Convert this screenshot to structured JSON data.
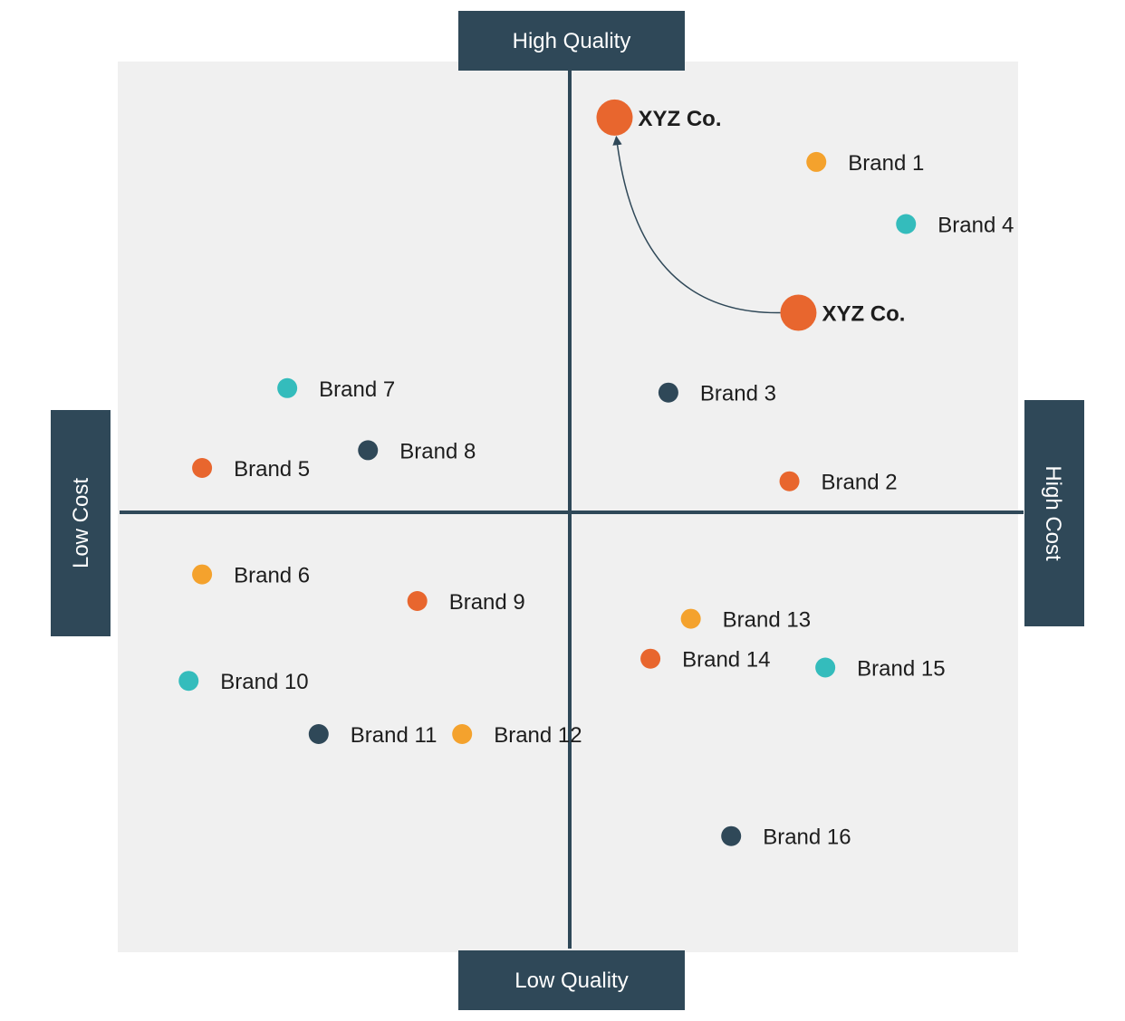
{
  "chart_data": {
    "type": "scatter",
    "title": "",
    "axes": {
      "top": "High Quality",
      "bottom": "Low Quality",
      "left": "Low Cost",
      "right": "High Cost"
    },
    "xlim": [
      -10,
      10
    ],
    "ylim": [
      -10,
      10
    ],
    "grid": false,
    "colors": {
      "background": "#f0f0f0",
      "axis": "#2f4858",
      "label_box": "#2f4858",
      "orange": "#e8662e",
      "yellow": "#f4a22d",
      "teal": "#34bcbc",
      "navy": "#2f4858",
      "arrow": "#2f4858"
    },
    "points": [
      {
        "label": "XYZ Co.",
        "x": 1.0,
        "y": 8.9,
        "color": "orange",
        "highlight": true
      },
      {
        "label": "XYZ Co.",
        "x": 5.1,
        "y": 4.5,
        "color": "orange",
        "highlight": true
      },
      {
        "label": "Brand 1",
        "x": 5.5,
        "y": 7.9,
        "color": "yellow"
      },
      {
        "label": "Brand 4",
        "x": 7.5,
        "y": 6.5,
        "color": "teal"
      },
      {
        "label": "Brand 3",
        "x": 2.2,
        "y": 2.7,
        "color": "navy"
      },
      {
        "label": "Brand 2",
        "x": 4.9,
        "y": 0.7,
        "color": "orange"
      },
      {
        "label": "Brand 7",
        "x": -6.3,
        "y": 2.8,
        "color": "teal"
      },
      {
        "label": "Brand 8",
        "x": -4.5,
        "y": 1.4,
        "color": "navy"
      },
      {
        "label": "Brand 5",
        "x": -8.2,
        "y": 1.0,
        "color": "orange"
      },
      {
        "label": "Brand 6",
        "x": -8.2,
        "y": -1.4,
        "color": "yellow"
      },
      {
        "label": "Brand 9",
        "x": -3.4,
        "y": -2.0,
        "color": "orange"
      },
      {
        "label": "Brand 10",
        "x": -8.5,
        "y": -3.8,
        "color": "teal"
      },
      {
        "label": "Brand 11",
        "x": -5.6,
        "y": -5.0,
        "color": "navy"
      },
      {
        "label": "Brand 12",
        "x": -2.4,
        "y": -5.0,
        "color": "yellow"
      },
      {
        "label": "Brand 13",
        "x": 2.7,
        "y": -2.4,
        "color": "yellow"
      },
      {
        "label": "Brand 14",
        "x": 1.8,
        "y": -3.3,
        "color": "orange"
      },
      {
        "label": "Brand 15",
        "x": 5.7,
        "y": -3.5,
        "color": "teal"
      },
      {
        "label": "Brand 16",
        "x": 3.6,
        "y": -7.3,
        "color": "navy"
      }
    ],
    "arrow": {
      "from": "XYZ Co. (5.1, 4.5)",
      "to": "XYZ Co. (1.0, 8.9)"
    }
  }
}
